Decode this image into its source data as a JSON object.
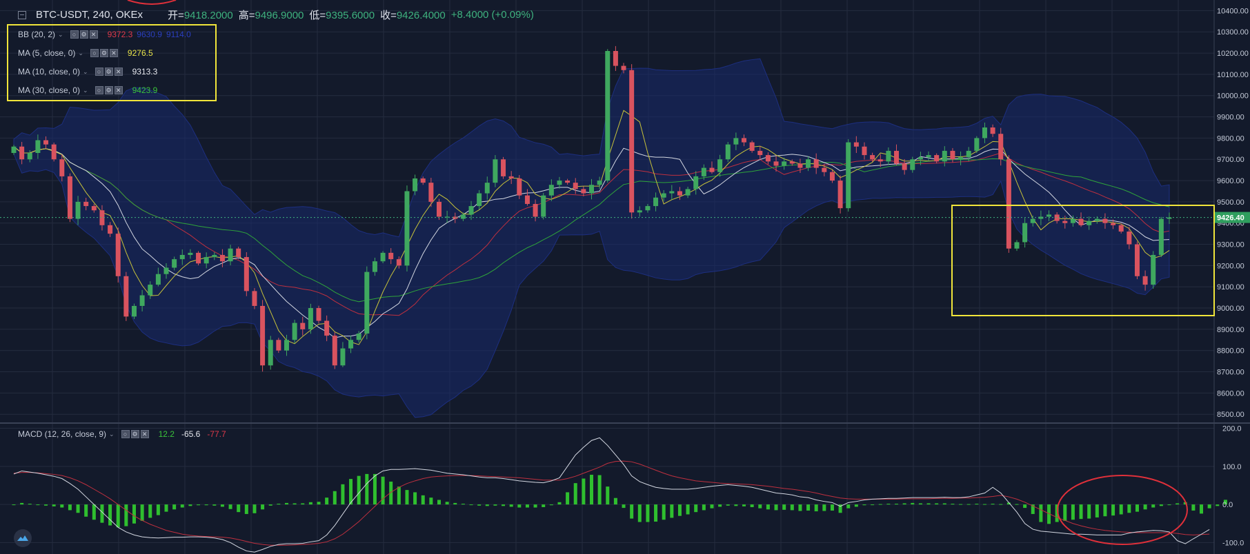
{
  "header": {
    "symbol": "BTC-USDT, 240, OKEx",
    "open_label": "开=",
    "open": "9418.2000",
    "high_label": "高=",
    "high": "9496.9000",
    "low_label": "低=",
    "low": "9395.6000",
    "close_label": "收=",
    "close": "9426.4000",
    "change": "+8.4000 (+0.09%)"
  },
  "indicators": [
    {
      "name": "BB (20, 2)",
      "values": [
        "9372.3",
        "9630.9",
        "9114.0"
      ],
      "colors": [
        "#e0394a",
        "#2b3fbf",
        "#2b3fbf"
      ]
    },
    {
      "name": "MA (5, close, 0)",
      "values": [
        "9276.5"
      ],
      "colors": [
        "#e8e34a"
      ]
    },
    {
      "name": "MA (10, close, 0)",
      "values": [
        "9313.3"
      ],
      "colors": [
        "#e6e8ee"
      ]
    },
    {
      "name": "MA (30, close, 0)",
      "values": [
        "9423.9"
      ],
      "colors": [
        "#3bc43b"
      ]
    }
  ],
  "macd_legend": {
    "name": "MACD (12, 26, close, 9)",
    "values": [
      "12.2",
      "-65.6",
      "-77.7"
    ],
    "colors": [
      "#3bc43b",
      "#e6e8ee",
      "#e0394a"
    ]
  },
  "price_label": "9426.40",
  "colors": {
    "background": "#131a2b",
    "up": "#3fa85f",
    "down": "#d9535f",
    "band": "#172a6b",
    "highlight": "#f2e63a",
    "circle": "#e0303a"
  },
  "chart_data": {
    "type": "candlestick",
    "title": "BTC-USDT, 240, OKEx",
    "y_ticks": [
      8500,
      8600,
      8700,
      8800,
      8900,
      9000,
      9100,
      9200,
      9300,
      9400,
      9500,
      9600,
      9700,
      9800,
      9900,
      10000,
      10100,
      10200,
      10300,
      10400
    ],
    "y_tick_labels": [
      "8500.00",
      "8600.00",
      "8700.00",
      "8800.00",
      "8900.00",
      "9000.00",
      "9100.00",
      "9200.00",
      "9300.00",
      "9400.00",
      "9500.00",
      "9600.00",
      "9700.00",
      "9800.00",
      "9900.00",
      "10000.00",
      "10100.00",
      "10200.00",
      "10300.00",
      "10400.00"
    ],
    "ylim": [
      8465,
      10450
    ],
    "macd_ticks": [
      200,
      100,
      0,
      -100
    ],
    "macd_tick_labels": [
      "200.0",
      "100.0",
      "0.0",
      "-100.0"
    ],
    "macd_ylim": [
      -130,
      210
    ],
    "last_price": 9426.4,
    "closes": [
      9760,
      9700,
      9730,
      9790,
      9770,
      9700,
      9620,
      9420,
      9500,
      9480,
      9460,
      9390,
      9350,
      9150,
      8960,
      9010,
      9060,
      9110,
      9160,
      9190,
      9230,
      9250,
      9260,
      9210,
      9240,
      9250,
      9220,
      9280,
      9240,
      9080,
      9010,
      8730,
      8850,
      8800,
      8850,
      8930,
      8900,
      9000,
      8940,
      8870,
      8730,
      8810,
      8850,
      8880,
      9170,
      9220,
      9260,
      9230,
      9200,
      9550,
      9610,
      9590,
      9500,
      9430,
      9430,
      9420,
      9440,
      9480,
      9540,
      9590,
      9700,
      9620,
      9610,
      9530,
      9490,
      9430,
      9530,
      9580,
      9600,
      9590,
      9560,
      9540,
      9580,
      9600,
      10210,
      10140,
      10120,
      9450,
      9460,
      9480,
      9520,
      9540,
      9550,
      9530,
      9560,
      9620,
      9660,
      9640,
      9700,
      9770,
      9800,
      9780,
      9740,
      9720,
      9690,
      9670,
      9690,
      9680,
      9660,
      9700,
      9660,
      9640,
      9600,
      9470,
      9780,
      9760,
      9720,
      9700,
      9690,
      9740,
      9680,
      9650,
      9700,
      9710,
      9720,
      9690,
      9740,
      9700,
      9710,
      9740,
      9800,
      9850,
      9820,
      9700,
      9280,
      9310,
      9400,
      9420,
      9430,
      9440,
      9410,
      9400,
      9420,
      9390,
      9410,
      9420,
      9400,
      9390,
      9360,
      9300,
      9150,
      9110,
      9250,
      9420,
      9426.4
    ],
    "macd": [
      80,
      88,
      85,
      82,
      78,
      74,
      68,
      55,
      40,
      20,
      0,
      -20,
      -40,
      -60,
      -72,
      -80,
      -85,
      -87,
      -88,
      -87,
      -86,
      -86,
      -85,
      -85,
      -86,
      -88,
      -92,
      -100,
      -112,
      -122,
      -125,
      -118,
      -110,
      -105,
      -103,
      -103,
      -102,
      -98,
      -95,
      -80,
      -55,
      -25,
      5,
      30,
      55,
      75,
      88,
      92,
      92,
      93,
      94,
      92,
      90,
      86,
      82,
      80,
      78,
      75,
      72,
      70,
      70,
      68,
      65,
      62,
      60,
      58,
      57,
      62,
      70,
      100,
      130,
      150,
      168,
      175,
      155,
      130,
      105,
      75,
      60,
      52,
      45,
      42,
      40,
      40,
      40,
      42,
      45,
      48,
      50,
      52,
      50,
      48,
      45,
      40,
      35,
      30,
      28,
      25,
      20,
      18,
      12,
      8,
      5,
      -5,
      5,
      8,
      12,
      14,
      15,
      16,
      16,
      17,
      18,
      18,
      18,
      18,
      19,
      18,
      18,
      20,
      25,
      30,
      45,
      30,
      5,
      -20,
      -50,
      -65,
      -70,
      -72,
      -74,
      -76,
      -78,
      -78,
      -79,
      -80,
      -80,
      -80,
      -80,
      -75,
      -72,
      -70,
      -68,
      -69,
      -72,
      -95,
      -103,
      -90,
      -78,
      -65.6
    ],
    "signal": [
      82,
      84,
      84,
      83,
      81,
      79,
      76,
      70,
      62,
      52,
      40,
      28,
      15,
      0,
      -15,
      -30,
      -42,
      -52,
      -60,
      -68,
      -73,
      -78,
      -81,
      -83,
      -84,
      -85,
      -86,
      -88,
      -92,
      -97,
      -102,
      -105,
      -107,
      -107,
      -107,
      -106,
      -105,
      -104,
      -102,
      -98,
      -90,
      -78,
      -62,
      -45,
      -25,
      -5,
      15,
      32,
      45,
      55,
      62,
      68,
      72,
      74,
      75,
      76,
      76,
      76,
      75,
      74,
      73,
      72,
      71,
      70,
      68,
      66,
      64,
      64,
      64,
      68,
      74,
      82,
      90,
      98,
      108,
      113,
      114,
      112,
      106,
      98,
      90,
      82,
      75,
      70,
      66,
      62,
      60,
      58,
      56,
      55,
      54,
      53,
      52,
      50,
      48,
      45,
      42,
      40,
      37,
      34,
      30,
      25,
      21,
      17,
      15,
      14,
      14,
      14,
      14,
      14,
      14,
      15,
      15,
      15,
      15,
      16,
      16,
      16,
      17,
      17,
      18,
      19,
      21,
      24,
      20,
      14,
      6,
      -4,
      -14,
      -24,
      -34,
      -42,
      -50,
      -56,
      -61,
      -65,
      -68,
      -70,
      -72,
      -73,
      -74,
      -74,
      -74,
      -74,
      -74,
      -76,
      -79,
      -80,
      -79,
      -77.7
    ],
    "hist": [
      0,
      4,
      2,
      -1,
      -3,
      -5,
      -8,
      -15,
      -22,
      -32,
      -40,
      -48,
      -55,
      -60,
      -57,
      -50,
      -43,
      -35,
      -28,
      -19,
      -13,
      -8,
      -4,
      -2,
      -2,
      -3,
      -6,
      -12,
      -20,
      -25,
      -23,
      -13,
      -3,
      2,
      4,
      3,
      3,
      6,
      7,
      18,
      35,
      53,
      67,
      75,
      80,
      80,
      73,
      60,
      47,
      38,
      32,
      24,
      18,
      12,
      7,
      4,
      2,
      -1,
      -3,
      -4,
      -3,
      -4,
      -6,
      -8,
      -8,
      -8,
      -7,
      -2,
      6,
      32,
      56,
      68,
      78,
      77,
      47,
      17,
      -9,
      -37,
      -46,
      -46,
      -45,
      -40,
      -35,
      -30,
      -26,
      -20,
      -15,
      -10,
      -6,
      -3,
      -4,
      -5,
      -7,
      -10,
      -13,
      -15,
      -14,
      -15,
      -17,
      -16,
      -18,
      -17,
      -16,
      -22,
      -10,
      -6,
      -2,
      0,
      1,
      2,
      2,
      3,
      4,
      3,
      3,
      3,
      3,
      2,
      1,
      1,
      2,
      1,
      2,
      1,
      5,
      1,
      -9,
      -25,
      -46,
      -51,
      -46,
      -43,
      -40,
      -38,
      -37,
      -34,
      -31,
      -29,
      -26,
      -22,
      -19,
      -13,
      -8,
      -4,
      0,
      3,
      6,
      -16,
      -24,
      -10,
      -4,
      12.2
    ]
  }
}
